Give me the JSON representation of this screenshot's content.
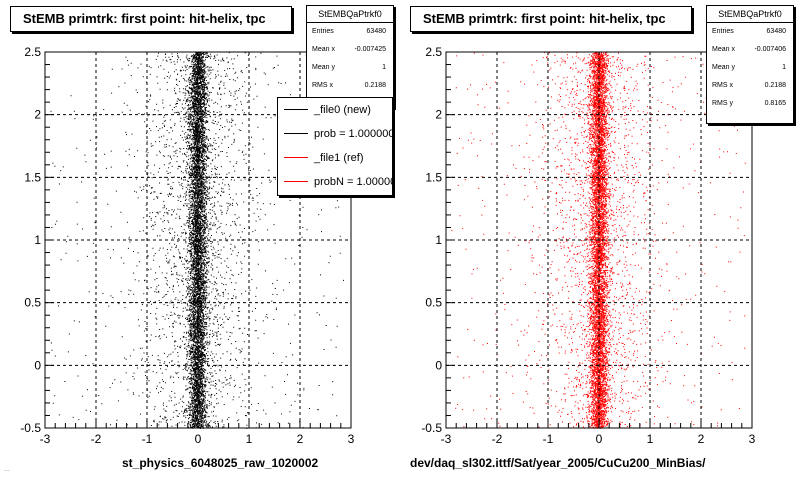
{
  "colors": {
    "black": "#000000",
    "red": "#ff0000",
    "grid": "#000000"
  },
  "left": {
    "title": "StEMB primtrk: first point: hit-helix, tpc",
    "stats": {
      "title": "StEMBQaPtrkf0",
      "rows": [
        {
          "k": "Entries",
          "v": "63480"
        },
        {
          "k": "Mean x",
          "v": "-0.007425"
        },
        {
          "k": "Mean y",
          "v": "1"
        },
        {
          "k": "RMS x",
          "v": "0.2188"
        }
      ]
    },
    "legend": [
      {
        "label": "_file0 (new)",
        "color": "#000000"
      },
      {
        "label": "prob = 1.000000",
        "color": "#000000"
      },
      {
        "label": "_file1 (ref)",
        "color": "#ff0000"
      },
      {
        "label": "probN = 1.000000",
        "color": "#ff0000"
      }
    ],
    "xlabel": "st_physics_6048025_raw_1020002",
    "footer": "..."
  },
  "right": {
    "title": "StEMB primtrk: first point: hit-helix, tpc",
    "stats": {
      "title": "StEMBQaPtrkf0",
      "rows": [
        {
          "k": "Entries",
          "v": "63480"
        },
        {
          "k": "Mean x",
          "v": "-0.007406"
        },
        {
          "k": "Mean y",
          "v": "1"
        },
        {
          "k": "RMS x",
          "v": "0.2188"
        },
        {
          "k": "RMS y",
          "v": "0.8165"
        }
      ]
    },
    "xlabel": "dev/daq_sl302.ittf/Sat/year_2005/CuCu200_MinBias/"
  },
  "chart_data": [
    {
      "type": "scatter",
      "title": "StEMB primtrk: first point: hit-helix, tpc",
      "xlabel": "st_physics_6048025_raw_1020002",
      "ylabel": "",
      "xlim": [
        -3,
        3
      ],
      "ylim": [
        -0.5,
        2.5
      ],
      "xticks": [
        -3,
        -2,
        -1,
        0,
        1,
        2,
        3
      ],
      "yticks": [
        -0.5,
        0,
        0.5,
        1,
        1.5,
        2,
        2.5
      ],
      "grid": true,
      "series": [
        {
          "name": "_file0 (new)",
          "color": "#000000",
          "distribution": {
            "x_mean": -0.007425,
            "x_rms": 0.2188,
            "y_uniform": [
              -0.5,
              2.5
            ],
            "entries": 63480
          }
        }
      ]
    },
    {
      "type": "scatter",
      "title": "StEMB primtrk: first point: hit-helix, tpc",
      "xlabel": "dev/daq_sl302.ittf/Sat/year_2005/CuCu200_MinBias/",
      "ylabel": "",
      "xlim": [
        -3,
        3
      ],
      "ylim": [
        -0.5,
        2.5
      ],
      "xticks": [
        -3,
        -2,
        -1,
        0,
        1,
        2,
        3
      ],
      "yticks": [
        -0.5,
        0,
        0.5,
        1,
        1.5,
        2,
        2.5
      ],
      "grid": true,
      "series": [
        {
          "name": "_file1 (ref)",
          "color": "#ff0000",
          "distribution": {
            "x_mean": -0.007406,
            "x_rms": 0.2188,
            "y_uniform": [
              -0.5,
              2.5
            ],
            "entries": 63480
          }
        }
      ]
    }
  ]
}
